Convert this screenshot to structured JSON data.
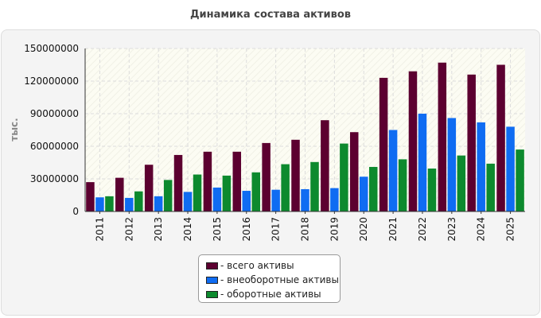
{
  "chart_data": {
    "type": "bar",
    "title": "Динамика состава активов",
    "ylabel": "тыс.",
    "xlabel": "",
    "ylim": [
      0,
      150000000
    ],
    "yticks": [
      "0",
      "30000000",
      "60000000",
      "90000000",
      "120000000",
      "150000000"
    ],
    "grid": true,
    "legend_position": "bottom",
    "categories": [
      "2011",
      "2012",
      "2013",
      "2014",
      "2015",
      "2016",
      "2017",
      "2018",
      "2019",
      "2020",
      "2021",
      "2022",
      "2023",
      "2024",
      "2025"
    ],
    "series": [
      {
        "name": "- всего активы",
        "color": "#5c0030",
        "values": [
          27000000,
          31000000,
          43000000,
          52000000,
          55000000,
          55000000,
          63000000,
          66000000,
          84000000,
          73000000,
          123000000,
          129000000,
          137000000,
          126000000,
          135000000
        ]
      },
      {
        "name": "- внеоборотные активы",
        "color": "#0f6cf2",
        "values": [
          13000000,
          12500000,
          14000000,
          18000000,
          22000000,
          19000000,
          20000000,
          20500000,
          21500000,
          32000000,
          75000000,
          90000000,
          86000000,
          82000000,
          78000000
        ]
      },
      {
        "name": "- оборотные активы",
        "color": "#0d8a2e",
        "values": [
          14000000,
          18500000,
          29000000,
          34000000,
          33000000,
          36000000,
          43500000,
          45500000,
          62500000,
          41000000,
          48000000,
          39500000,
          51500000,
          44000000,
          57000000
        ]
      }
    ]
  }
}
